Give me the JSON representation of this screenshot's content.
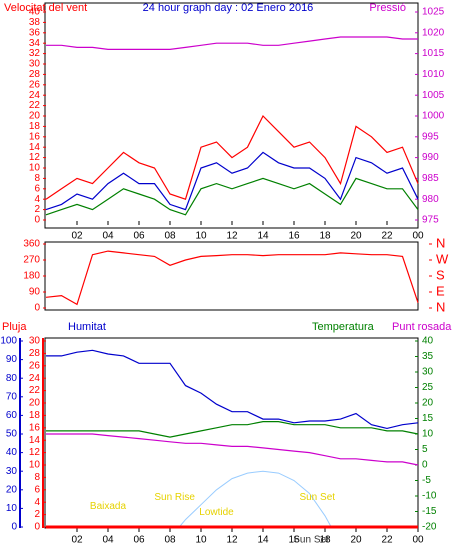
{
  "title": "24 hour graph day : 02 Enero 2016",
  "chart_data": [
    {
      "type": "line",
      "y_label": "Velocitat del vent",
      "y2_label": "Pressió",
      "xlim": [
        0,
        24
      ],
      "xticks": [
        {
          "value": 2,
          "label": "02"
        },
        {
          "value": 4,
          "label": "04"
        },
        {
          "value": 6,
          "label": "06"
        },
        {
          "value": 8,
          "label": "08"
        },
        10,
        12,
        14,
        16,
        18,
        20,
        22,
        {
          "value": 24,
          "label": "00"
        }
      ],
      "ylim": [
        0,
        40
      ],
      "yticks": [
        0,
        2,
        4,
        6,
        8,
        10,
        12,
        14,
        16,
        18,
        20,
        22,
        24,
        26,
        28,
        30,
        32,
        34,
        36,
        38,
        40
      ],
      "y2lim": [
        975,
        1025
      ],
      "y2ticks": [
        975,
        980,
        985,
        990,
        995,
        1000,
        1005,
        1010,
        1015,
        1020,
        1025
      ],
      "x": [
        0,
        1,
        2,
        3,
        4,
        5,
        6,
        7,
        8,
        9,
        10,
        11,
        12,
        13,
        14,
        15,
        16,
        17,
        18,
        19,
        20,
        21,
        22,
        23,
        24
      ],
      "series": [
        {
          "color": "#ff0000",
          "axis": "y",
          "values": [
            4,
            6,
            8,
            7,
            10,
            13,
            11,
            10,
            5,
            4,
            14,
            15,
            12,
            14,
            20,
            17,
            14,
            15,
            12,
            7,
            18,
            16,
            13,
            14,
            7
          ]
        },
        {
          "color": "#008000",
          "axis": "y",
          "values": [
            1,
            2,
            3,
            2,
            4,
            6,
            5,
            4,
            2,
            1,
            6,
            7,
            6,
            7,
            8,
            7,
            6,
            7,
            5,
            3,
            8,
            7,
            6,
            6,
            2
          ]
        },
        {
          "color": "#0000cc",
          "axis": "y",
          "values": [
            2,
            3,
            5,
            4,
            7,
            9,
            7,
            7,
            3,
            2,
            10,
            11,
            9,
            10,
            13,
            11,
            10,
            10,
            8,
            4,
            12,
            11,
            9,
            10,
            4
          ]
        },
        {
          "color": "#cc00cc",
          "axis": "y2",
          "values": [
            1017,
            1017,
            1016.5,
            1016.5,
            1016,
            1016,
            1016,
            1016,
            1016,
            1016.5,
            1017,
            1017.5,
            1017.5,
            1017.5,
            1017,
            1017,
            1017.5,
            1018,
            1018.5,
            1019,
            1019,
            1019,
            1019,
            1018.5,
            1018.5
          ]
        }
      ]
    },
    {
      "type": "line",
      "xlim": [
        0,
        24
      ],
      "ylim": [
        0,
        360
      ],
      "yticks": [
        0,
        90,
        180,
        270,
        360
      ],
      "y2lim": [
        0,
        360
      ],
      "y2ticks": [
        {
          "value": 360,
          "label": "N"
        },
        {
          "value": 270,
          "label": "W"
        },
        {
          "value": 180,
          "label": "S"
        },
        {
          "value": 90,
          "label": "E"
        },
        {
          "value": 0,
          "label": "N"
        }
      ],
      "x": [
        0,
        1,
        2,
        3,
        4,
        5,
        6,
        7,
        8,
        9,
        10,
        11,
        12,
        13,
        14,
        15,
        16,
        17,
        18,
        19,
        20,
        21,
        22,
        23,
        24
      ],
      "series": [
        {
          "color": "#ff0000",
          "axis": "y",
          "values": [
            60,
            70,
            20,
            300,
            320,
            310,
            300,
            290,
            240,
            270,
            290,
            295,
            300,
            300,
            295,
            300,
            300,
            300,
            300,
            310,
            305,
            300,
            300,
            290,
            30
          ]
        }
      ]
    },
    {
      "type": "line",
      "y_label": "Pluja",
      "y3_label": "Humitat",
      "y2_label": "Temperatura",
      "y4_label": "Punt rosada",
      "xlim": [
        0,
        24
      ],
      "xticks": [
        {
          "value": 2,
          "label": "02"
        },
        {
          "value": 4,
          "label": "04"
        },
        {
          "value": 6,
          "label": "06"
        },
        {
          "value": 8,
          "label": "08"
        },
        10,
        12,
        14,
        16,
        18,
        20,
        22,
        {
          "value": 24,
          "label": "00"
        }
      ],
      "ylim": [
        0,
        30
      ],
      "yticks": [
        0,
        2,
        4,
        6,
        8,
        10,
        12,
        14,
        16,
        18,
        20,
        22,
        24,
        26,
        28,
        30
      ],
      "y3lim": [
        0,
        100
      ],
      "y3ticks": [
        0,
        10,
        20,
        30,
        40,
        50,
        60,
        70,
        80,
        90,
        100
      ],
      "y2lim": [
        -20,
        40
      ],
      "y2ticks": [
        -20,
        -15,
        -10,
        -5,
        0,
        5,
        10,
        15,
        20,
        25,
        30,
        35,
        40
      ],
      "x": [
        0,
        1,
        2,
        3,
        4,
        5,
        6,
        7,
        8,
        9,
        10,
        11,
        12,
        13,
        14,
        15,
        16,
        17,
        18,
        19,
        20,
        21,
        22,
        23,
        24
      ],
      "series": [
        {
          "color": "#0000cc",
          "axis": "y3",
          "values": [
            92,
            92,
            94,
            95,
            93,
            92,
            88,
            88,
            88,
            76,
            72,
            66,
            62,
            62,
            58,
            58,
            56,
            57,
            57,
            58,
            61,
            55,
            53,
            55,
            56
          ]
        },
        {
          "color": "#008000",
          "axis": "y2",
          "values": [
            11,
            11,
            11,
            11,
            11,
            11,
            11,
            10,
            9,
            10,
            11,
            12,
            13,
            13,
            14,
            14,
            13,
            13,
            13,
            12,
            12,
            12,
            11,
            11,
            10
          ]
        },
        {
          "color": "#cc00cc",
          "axis": "y2",
          "values": [
            10,
            10,
            10,
            10,
            9.5,
            9,
            8.5,
            8,
            7.5,
            7,
            7,
            6.5,
            6,
            6,
            5.5,
            5,
            4.5,
            4,
            3,
            2,
            2,
            1.5,
            1,
            1,
            0
          ]
        },
        {
          "color": "#ff0000",
          "axis": "y",
          "values": [
            0,
            0,
            0,
            0,
            0,
            0,
            0,
            0,
            0,
            0,
            0,
            0,
            0,
            0,
            0,
            0,
            0,
            0,
            0,
            0,
            0,
            0,
            0,
            0,
            0
          ]
        }
      ],
      "sun": {
        "color": "#99ccff",
        "axis": "y3",
        "x": [
          8.6,
          9,
          10,
          11,
          12,
          13,
          14,
          15,
          16,
          17,
          18,
          18.4
        ],
        "values": [
          0,
          4,
          12,
          20,
          26,
          29,
          30,
          29,
          25,
          18,
          6,
          0
        ]
      },
      "annotations": [
        {
          "text": "Baixada",
          "x": 4,
          "y": 11,
          "color": "#e6d200"
        },
        {
          "text": "Sun Rise",
          "x": 8.3,
          "y": 16,
          "color": "#e6d200"
        },
        {
          "text": "Lowtide",
          "x": 11,
          "y": 8,
          "color": "#e6d200"
        },
        {
          "text": "Sun Set",
          "x": 17.5,
          "y": 16,
          "color": "#e6d200"
        },
        {
          "text": "Sun Set",
          "x": 17.1,
          "y": -7,
          "color": "#333333"
        }
      ]
    }
  ]
}
